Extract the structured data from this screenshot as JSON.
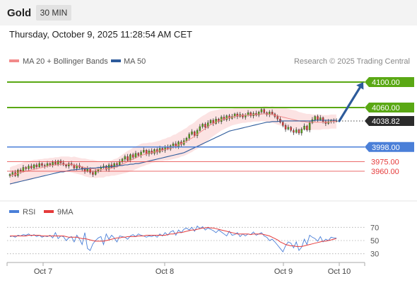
{
  "header": {
    "symbol": "Gold",
    "timeframe": "30 MIN",
    "datetime": "Thursday, October 9, 2025 11:28:54 AM CET"
  },
  "legend": {
    "items": [
      {
        "label": "MA 20 + Bollinger Bands",
        "color": "#f28a8a"
      },
      {
        "label": "MA 50",
        "color": "#2d5b9b"
      }
    ],
    "copyright": "Research © 2025 Trading Central"
  },
  "colors": {
    "resistance": "#5aa814",
    "support_blue": "#4a7fd8",
    "support_red": "#e53b3b",
    "current": "#2b2b2b",
    "arrow": "#2d5b9b",
    "candle_up": "#5aa814",
    "candle_down": "#e53b3b",
    "bollinger": "#fbd9d9",
    "ma20": "#f28a8a",
    "ma50": "#2d5b9b",
    "rsi": "#4a7fd8",
    "rsi_ma": "#e53b3b"
  },
  "chart_data": [
    {
      "type": "candlestick",
      "x_ticks": [
        "Oct 7",
        "Oct 8",
        "Oct 9",
        "Oct 10"
      ],
      "y_range": [
        3920,
        4120
      ],
      "levels": [
        {
          "value": 4100,
          "label": "4100.00",
          "kind": "resistance"
        },
        {
          "value": 4060,
          "label": "4060.00",
          "kind": "resistance"
        },
        {
          "value": 4038.82,
          "label": "4038.82",
          "kind": "current"
        },
        {
          "value": 3998,
          "label": "3998.00",
          "kind": "support_blue"
        },
        {
          "value": 3975,
          "label": "3975.00",
          "kind": "support_red"
        },
        {
          "value": 3960,
          "label": "3960.00",
          "kind": "support_red"
        }
      ],
      "close": [
        3955,
        3958,
        3953,
        3962,
        3960,
        3966,
        3964,
        3968,
        3965,
        3970,
        3967,
        3972,
        3969,
        3968,
        3972,
        3970,
        3974,
        3971,
        3976,
        3973,
        3970,
        3968,
        3972,
        3970,
        3965,
        3969,
        3966,
        3963,
        3960,
        3964,
        3958,
        3955,
        3960,
        3963,
        3966,
        3968,
        3963,
        3970,
        3966,
        3972,
        3970,
        3975,
        3979,
        3983,
        3977,
        3986,
        3982,
        3988,
        3985,
        3990,
        3993,
        3987,
        3992,
        3988,
        3994,
        3990,
        3996,
        3993,
        3998,
        3995,
        4000,
        4003,
        3998,
        4006,
        4002,
        4008,
        4012,
        4018,
        4022,
        4016,
        4024,
        4030,
        4034,
        4029,
        4036,
        4040,
        4035,
        4042,
        4038,
        4045,
        4041,
        4047,
        4043,
        4046,
        4050,
        4046,
        4049,
        4045,
        4048,
        4052,
        4047,
        4051,
        4048,
        4053,
        4057,
        4052,
        4049,
        4053,
        4050,
        4046,
        4042,
        4037,
        4032,
        4026,
        4029,
        4024,
        4021,
        4025,
        4020,
        4026,
        4031,
        4025,
        4036,
        4041,
        4046,
        4041,
        4044,
        4038,
        4035,
        4038,
        4040,
        4039,
        4038.82
      ],
      "ma20": [
        3952,
        3954,
        3955,
        3957,
        3958,
        3959,
        3960,
        3961,
        3962,
        3963,
        3964,
        3965,
        3966,
        3967,
        3968,
        3969,
        3969,
        3970,
        3970,
        3971,
        3971,
        3971,
        3971,
        3970,
        3970,
        3969,
        3968,
        3967,
        3966,
        3965,
        3964,
        3964,
        3963,
        3963,
        3963,
        3963,
        3964,
        3964,
        3965,
        3966,
        3967,
        3969,
        3971,
        3973,
        3975,
        3977,
        3979,
        3981,
        3983,
        3985,
        3986,
        3987,
        3988,
        3989,
        3990,
        3991,
        3992,
        3993,
        3994,
        3995,
        3996,
        3998,
        3999,
        4001,
        4003,
        4005,
        4007,
        4010,
        4012,
        4015,
        4018,
        4021,
        4024,
        4027,
        4030,
        4033,
        4035,
        4037,
        4039,
        4041,
        4042,
        4043,
        4044,
        4045,
        4046,
        4047,
        4047,
        4048,
        4048,
        4048,
        4048,
        4049,
        4049,
        4049,
        4050,
        4050,
        4050,
        4049,
        4049,
        4048,
        4047,
        4046,
        4045,
        4044,
        4043,
        4042,
        4041,
        4040,
        4039,
        4038,
        4038,
        4037,
        4037,
        4037,
        4037,
        4037,
        4037,
        4037,
        4037,
        4037,
        4038,
        4038,
        4038
      ],
      "ma50": [
        3940,
        3941,
        3942,
        3943,
        3944,
        3945,
        3946,
        3947,
        3948,
        3949,
        3950,
        3951,
        3952,
        3953,
        3954,
        3955,
        3956,
        3957,
        3958,
        3959,
        3959,
        3960,
        3961,
        3962,
        3962,
        3963,
        3963,
        3964,
        3964,
        3964,
        3965,
        3965,
        3965,
        3966,
        3966,
        3966,
        3967,
        3967,
        3967,
        3968,
        3968,
        3969,
        3969,
        3970,
        3970,
        3971,
        3971,
        3972,
        3972,
        3973,
        3974,
        3975,
        3976,
        3977,
        3978,
        3979,
        3980,
        3981,
        3982,
        3983,
        3984,
        3985,
        3986,
        3987,
        3988,
        3989,
        3991,
        3993,
        3995,
        3997,
        3999,
        4001,
        4003,
        4005,
        4007,
        4009,
        4011,
        4013,
        4015,
        4017,
        4019,
        4021,
        4023,
        4024,
        4025,
        4026,
        4027,
        4028,
        4029,
        4030,
        4031,
        4032,
        4033,
        4034,
        4035,
        4036,
        4037,
        4037,
        4038,
        4038,
        4038,
        4039,
        4039,
        4039,
        4039,
        4039,
        4039,
        4039,
        4039,
        4039,
        4039,
        4039,
        4039,
        4039,
        4040,
        4040,
        4040,
        4040,
        4040,
        4040,
        4040,
        4040,
        4040
      ],
      "bb_width": [
        14,
        14,
        14,
        14,
        14,
        15,
        15,
        15,
        15,
        15,
        14,
        14,
        13,
        13,
        12,
        12,
        12,
        12,
        12,
        12,
        12,
        12,
        12,
        12,
        13,
        13,
        13,
        13,
        14,
        14,
        14,
        14,
        14,
        13,
        13,
        13,
        12,
        12,
        12,
        13,
        13,
        14,
        15,
        16,
        17,
        17,
        18,
        18,
        18,
        18,
        18,
        17,
        17,
        16,
        16,
        16,
        16,
        17,
        17,
        18,
        18,
        19,
        19,
        20,
        20,
        21,
        21,
        22,
        22,
        22,
        23,
        23,
        23,
        22,
        22,
        21,
        20,
        19,
        18,
        17,
        16,
        15,
        14,
        13,
        13,
        13,
        12,
        12,
        12,
        11,
        11,
        11,
        11,
        11,
        11,
        12,
        12,
        12,
        13,
        13,
        14,
        14,
        15,
        15,
        15,
        15,
        15,
        15,
        14,
        14,
        13,
        13,
        13,
        12,
        12,
        12,
        12,
        11,
        11,
        11,
        11,
        11,
        11
      ]
    },
    {
      "type": "line",
      "legend": [
        "RSI",
        "9MA"
      ],
      "y_ticks": [
        70,
        50,
        30
      ],
      "y_range": [
        20,
        80
      ],
      "rsi": [
        56,
        57,
        55,
        58,
        57,
        59,
        58,
        60,
        57,
        59,
        56,
        58,
        55,
        57,
        56,
        58,
        54,
        62,
        53,
        57,
        56,
        50,
        54,
        56,
        48,
        58,
        52,
        44,
        62,
        38,
        35,
        45,
        50,
        54,
        56,
        44,
        60,
        52,
        58,
        54,
        48,
        57,
        56,
        55,
        52,
        57,
        59,
        56,
        60,
        58,
        57,
        55,
        57,
        56,
        58,
        55,
        60,
        57,
        62,
        58,
        63,
        65,
        58,
        66,
        62,
        67,
        69,
        66,
        70,
        64,
        72,
        68,
        71,
        66,
        69,
        67,
        65,
        62,
        66,
        63,
        60,
        57,
        64,
        58,
        59,
        62,
        56,
        60,
        57,
        60,
        59,
        63,
        58,
        60,
        62,
        57,
        55,
        50,
        52,
        48,
        43,
        38,
        33,
        42,
        48,
        46,
        39,
        48,
        35,
        40,
        52,
        44,
        58,
        55,
        53,
        49,
        56,
        48,
        52,
        50,
        55,
        54,
        54
      ],
      "ma9": [
        57,
        57,
        57,
        57,
        57,
        57,
        57,
        58,
        58,
        58,
        58,
        58,
        57,
        57,
        57,
        57,
        57,
        57,
        57,
        57,
        57,
        56,
        55,
        55,
        55,
        55,
        54,
        53,
        53,
        52,
        51,
        50,
        49,
        49,
        49,
        49,
        50,
        51,
        52,
        53,
        54,
        54,
        55,
        55,
        56,
        56,
        56,
        56,
        57,
        57,
        57,
        58,
        58,
        58,
        58,
        58,
        58,
        58,
        58,
        59,
        60,
        60,
        61,
        62,
        62,
        63,
        64,
        65,
        66,
        66,
        67,
        68,
        69,
        69,
        70,
        69,
        69,
        68,
        67,
        66,
        65,
        64,
        63,
        62,
        61,
        60,
        60,
        60,
        60,
        60,
        59,
        60,
        60,
        60,
        60,
        59,
        58,
        57,
        55,
        53,
        51,
        48,
        46,
        44,
        43,
        42,
        42,
        41,
        41,
        41,
        42,
        43,
        44,
        45,
        46,
        47,
        48,
        49,
        49,
        50,
        51,
        52,
        53
      ]
    }
  ]
}
